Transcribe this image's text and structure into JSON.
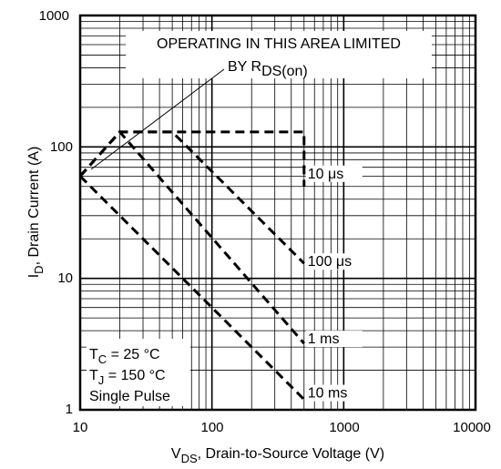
{
  "chart_data": {
    "type": "line",
    "xscale": "log",
    "yscale": "log",
    "xlim": [
      10,
      10000
    ],
    "ylim": [
      1,
      1000
    ],
    "grid": true,
    "x_ticks": [
      "10",
      "100",
      "1000",
      "10000"
    ],
    "y_ticks": [
      "1",
      "10",
      "100",
      "1000"
    ],
    "xlabel": {
      "main": "V",
      "sub": "DS",
      "rest": ", Drain-to-Source Voltage (V)"
    },
    "ylabel": {
      "main": "I",
      "sub": "D",
      "rest": ", Drain Current (A)"
    },
    "annotation": {
      "line1": "OPERATING IN THIS AREA LIMITED",
      "line2_main": "BY R",
      "line2_sub": "DS(on)"
    },
    "conditions": {
      "tc_main": "T",
      "tc_sub": "C",
      "tc_rest": " = 25 °C",
      "tj_main": "T",
      "tj_sub": "J",
      "tj_rest": " = 150 °C",
      "pulse": "Single Pulse"
    },
    "rdson_limit": {
      "points": [
        [
          10,
          60
        ],
        [
          20,
          130
        ]
      ]
    },
    "series": [
      {
        "label": "10 μs",
        "points": [
          [
            10,
            60
          ],
          [
            20,
            130
          ],
          [
            500,
            130
          ],
          [
            500,
            50
          ]
        ]
      },
      {
        "label": "100 μs",
        "points": [
          [
            10,
            60
          ],
          [
            20,
            130
          ],
          [
            50,
            130
          ],
          [
            500,
            13
          ]
        ]
      },
      {
        "label": "1 ms",
        "points": [
          [
            10,
            60
          ],
          [
            20,
            130
          ],
          [
            500,
            3.2
          ]
        ]
      },
      {
        "label": "10 ms",
        "points": [
          [
            10,
            60
          ],
          [
            500,
            1.2
          ]
        ]
      }
    ]
  }
}
